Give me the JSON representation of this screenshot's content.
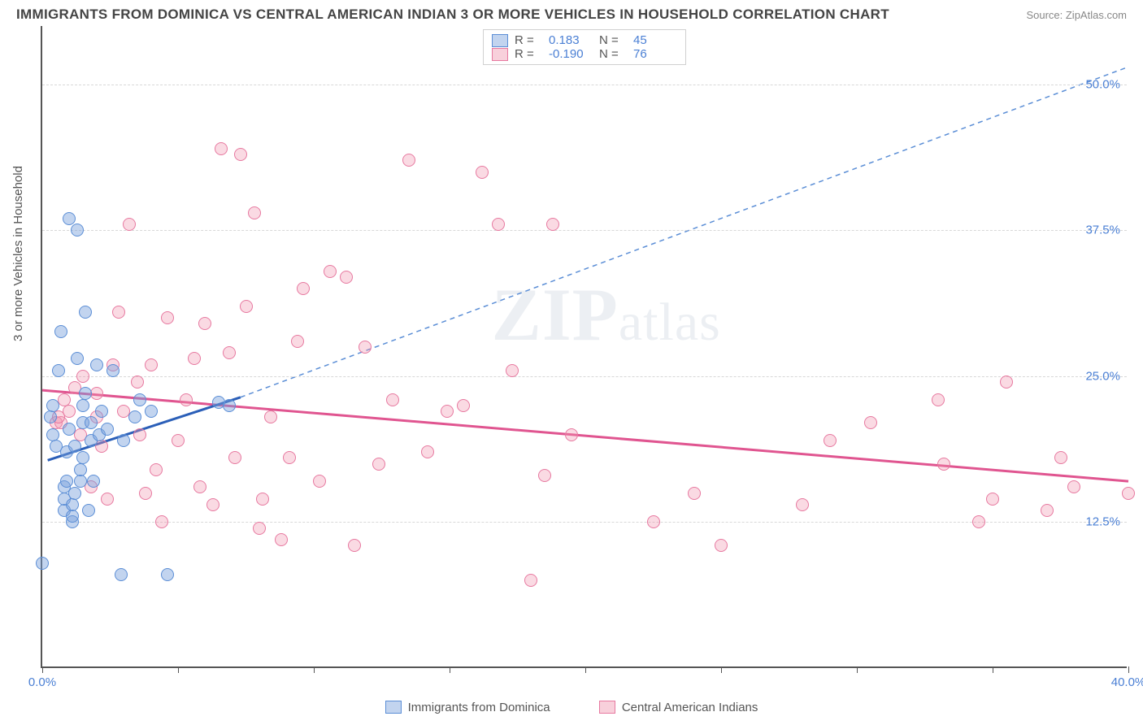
{
  "header": {
    "title": "IMMIGRANTS FROM DOMINICA VS CENTRAL AMERICAN INDIAN 3 OR MORE VEHICLES IN HOUSEHOLD CORRELATION CHART",
    "source": "Source: ZipAtlas.com"
  },
  "y_axis": {
    "label": "3 or more Vehicles in Household"
  },
  "chart": {
    "type": "scatter",
    "xlim": [
      0,
      40
    ],
    "ylim": [
      0,
      55
    ],
    "x_ticks": [
      0,
      5,
      10,
      15,
      20,
      25,
      30,
      35,
      40
    ],
    "x_tick_labels": {
      "0": "0.0%",
      "40": "40.0%"
    },
    "y_gridlines": [
      12.5,
      25.0,
      37.5,
      50.0
    ],
    "y_tick_labels": [
      "12.5%",
      "25.0%",
      "37.5%",
      "50.0%"
    ],
    "background_color": "#ffffff",
    "grid_color": "#d8d8d8",
    "axis_color": "#555555",
    "tick_label_color": "#4a7fd4"
  },
  "series": {
    "blue": {
      "label": "Immigrants from Dominica",
      "color_fill": "rgba(120,160,220,0.45)",
      "color_stroke": "#5b8ed6",
      "R": "0.183",
      "N": "45",
      "trend_solid": {
        "x1": 0.2,
        "y1": 17.8,
        "x2": 7.3,
        "y2": 23.2
      },
      "trend_dash": {
        "x1": 7.3,
        "y1": 23.2,
        "x2": 40.0,
        "y2": 51.5
      },
      "points": [
        [
          0.3,
          21.5
        ],
        [
          0.4,
          20.0
        ],
        [
          0.4,
          22.5
        ],
        [
          0.5,
          19.0
        ],
        [
          0.6,
          25.5
        ],
        [
          0.7,
          28.8
        ],
        [
          0.8,
          13.5
        ],
        [
          0.8,
          14.5
        ],
        [
          0.8,
          15.5
        ],
        [
          0.9,
          16.0
        ],
        [
          0.9,
          18.5
        ],
        [
          1.0,
          20.5
        ],
        [
          1.0,
          38.5
        ],
        [
          1.1,
          12.5
        ],
        [
          1.1,
          13.0
        ],
        [
          1.1,
          14.0
        ],
        [
          1.2,
          15.0
        ],
        [
          1.2,
          19.0
        ],
        [
          1.3,
          26.5
        ],
        [
          1.3,
          37.5
        ],
        [
          1.4,
          16.0
        ],
        [
          1.4,
          17.0
        ],
        [
          1.5,
          18.0
        ],
        [
          1.5,
          21.0
        ],
        [
          1.5,
          22.5
        ],
        [
          1.6,
          23.5
        ],
        [
          1.6,
          30.5
        ],
        [
          1.7,
          13.5
        ],
        [
          1.8,
          19.5
        ],
        [
          1.8,
          21.0
        ],
        [
          1.9,
          16.0
        ],
        [
          2.0,
          26.0
        ],
        [
          2.1,
          20.0
        ],
        [
          2.2,
          22.0
        ],
        [
          2.4,
          20.5
        ],
        [
          2.6,
          25.5
        ],
        [
          2.9,
          8.0
        ],
        [
          3.0,
          19.5
        ],
        [
          3.4,
          21.5
        ],
        [
          3.6,
          23.0
        ],
        [
          4.0,
          22.0
        ],
        [
          4.6,
          8.0
        ],
        [
          6.5,
          22.8
        ],
        [
          6.9,
          22.5
        ],
        [
          0.0,
          9.0
        ]
      ]
    },
    "pink": {
      "label": "Central American Indians",
      "color_fill": "rgba(240,150,175,0.35)",
      "color_stroke": "#e779a0",
      "R": "-0.190",
      "N": "76",
      "trend_solid": {
        "x1": 0.0,
        "y1": 23.8,
        "x2": 40.0,
        "y2": 16.0
      },
      "points": [
        [
          0.5,
          21.0
        ],
        [
          0.7,
          21.0
        ],
        [
          0.8,
          23.0
        ],
        [
          1.0,
          22.0
        ],
        [
          1.2,
          24.0
        ],
        [
          1.4,
          20.0
        ],
        [
          1.5,
          25.0
        ],
        [
          1.8,
          15.5
        ],
        [
          2.0,
          21.5
        ],
        [
          2.0,
          23.5
        ],
        [
          2.2,
          19.0
        ],
        [
          2.4,
          14.5
        ],
        [
          2.6,
          26.0
        ],
        [
          2.8,
          30.5
        ],
        [
          3.0,
          22.0
        ],
        [
          3.2,
          38.0
        ],
        [
          3.5,
          24.5
        ],
        [
          3.6,
          20.0
        ],
        [
          3.8,
          15.0
        ],
        [
          4.0,
          26.0
        ],
        [
          4.2,
          17.0
        ],
        [
          4.4,
          12.5
        ],
        [
          4.6,
          30.0
        ],
        [
          5.0,
          19.5
        ],
        [
          5.3,
          23.0
        ],
        [
          5.6,
          26.5
        ],
        [
          5.8,
          15.5
        ],
        [
          6.0,
          29.5
        ],
        [
          6.3,
          14.0
        ],
        [
          6.6,
          44.5
        ],
        [
          6.9,
          27.0
        ],
        [
          7.1,
          18.0
        ],
        [
          7.3,
          44.0
        ],
        [
          7.5,
          31.0
        ],
        [
          7.8,
          39.0
        ],
        [
          8.0,
          12.0
        ],
        [
          8.1,
          14.5
        ],
        [
          8.4,
          21.5
        ],
        [
          8.8,
          11.0
        ],
        [
          9.1,
          18.0
        ],
        [
          9.4,
          28.0
        ],
        [
          9.6,
          32.5
        ],
        [
          10.2,
          16.0
        ],
        [
          10.6,
          34.0
        ],
        [
          11.2,
          33.5
        ],
        [
          11.5,
          10.5
        ],
        [
          11.9,
          27.5
        ],
        [
          12.4,
          17.5
        ],
        [
          12.9,
          23.0
        ],
        [
          13.5,
          43.5
        ],
        [
          14.2,
          18.5
        ],
        [
          14.9,
          22.0
        ],
        [
          15.5,
          22.5
        ],
        [
          16.2,
          42.5
        ],
        [
          16.8,
          38.0
        ],
        [
          17.3,
          25.5
        ],
        [
          18.0,
          7.5
        ],
        [
          18.5,
          16.5
        ],
        [
          18.8,
          38.0
        ],
        [
          19.5,
          20.0
        ],
        [
          22.5,
          12.5
        ],
        [
          24.0,
          15.0
        ],
        [
          25.0,
          10.5
        ],
        [
          28.0,
          14.0
        ],
        [
          29.0,
          19.5
        ],
        [
          30.5,
          21.0
        ],
        [
          33.0,
          23.0
        ],
        [
          33.2,
          17.5
        ],
        [
          34.5,
          12.5
        ],
        [
          35.0,
          14.5
        ],
        [
          35.5,
          24.5
        ],
        [
          37.0,
          13.5
        ],
        [
          37.5,
          18.0
        ],
        [
          38.0,
          15.5
        ],
        [
          40.0,
          15.0
        ],
        [
          0.6,
          21.5
        ]
      ]
    }
  },
  "top_legend": {
    "rows": [
      {
        "swatch": "blue",
        "r_label": "R =",
        "r_value": "0.183",
        "n_label": "N =",
        "n_value": "45"
      },
      {
        "swatch": "pink",
        "r_label": "R =",
        "r_value": "-0.190",
        "n_label": "N =",
        "n_value": "76"
      }
    ]
  },
  "bottom_legend": {
    "items": [
      {
        "swatch": "blue",
        "label": "Immigrants from Dominica"
      },
      {
        "swatch": "pink",
        "label": "Central American Indians"
      }
    ]
  },
  "watermark": {
    "zip": "ZIP",
    "atlas": "atlas"
  }
}
